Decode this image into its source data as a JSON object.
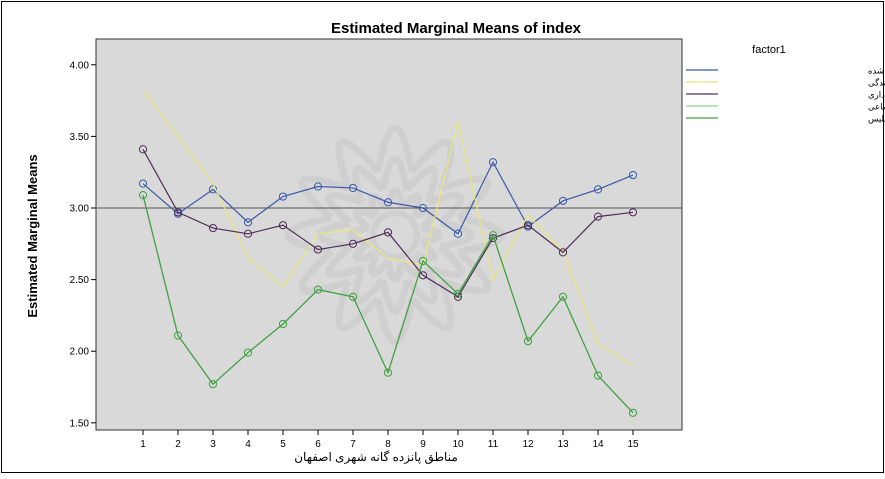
{
  "chart_data": {
    "type": "line",
    "title": "Estimated Marginal Means of index",
    "xlabel": "مناطق پانزده گانه شهری اصفهان",
    "ylabel": "Estimated Marginal Means",
    "categories": [
      "1",
      "2",
      "3",
      "4",
      "5",
      "6",
      "7",
      "8",
      "9",
      "10",
      "11",
      "12",
      "13",
      "14",
      "15"
    ],
    "y_ticks": [
      "1.50",
      "2.00",
      "2.50",
      "3.00",
      "3.50",
      "4.00"
    ],
    "ylim": [
      1.45,
      4.18
    ],
    "reference_line": 3.0,
    "legend": {
      "title": "factor1",
      "position": "top-right"
    },
    "grid": false,
    "background_color": "#d9d9d9",
    "series": [
      {
        "name": "میزان امنیت حس شده",
        "color": "#3a5aa8",
        "marker": true,
        "values": [
          3.17,
          2.96,
          3.13,
          2.9,
          3.08,
          3.15,
          3.14,
          3.04,
          3.0,
          2.82,
          3.32,
          2.87,
          3.05,
          3.13,
          3.23
        ]
      },
      {
        "name": "رضایت از هزینه زندگی",
        "color": "#e8e87a",
        "marker": false,
        "values": [
          3.82,
          3.5,
          3.17,
          2.65,
          2.45,
          2.82,
          2.85,
          2.65,
          2.6,
          3.6,
          2.5,
          2.95,
          2.7,
          2.05,
          1.9
        ]
      },
      {
        "name": "اعتماد به تصمیمات شورا و شهرداری",
        "color": "#4f2d5a",
        "marker": true,
        "values": [
          3.41,
          2.97,
          2.86,
          2.82,
          2.88,
          2.71,
          2.75,
          2.83,
          2.53,
          2.38,
          2.79,
          2.88,
          2.69,
          2.94,
          2.97
        ]
      },
      {
        "name": "میزان مشارکت اجتماعی",
        "color": "#8ed08e",
        "marker": false,
        "values": [
          3.09,
          2.11,
          1.77,
          1.99,
          2.19,
          2.43,
          2.38,
          1.85,
          2.63,
          2.4,
          2.81,
          2.07,
          2.38,
          1.83,
          1.57
        ]
      },
      {
        "name": "اعتماد به پلیس",
        "color": "#3f9f3f",
        "marker": true,
        "values": [
          3.09,
          2.11,
          1.77,
          1.99,
          2.19,
          2.43,
          2.38,
          1.85,
          2.63,
          2.4,
          2.81,
          2.07,
          2.38,
          1.83,
          1.57
        ]
      }
    ]
  }
}
